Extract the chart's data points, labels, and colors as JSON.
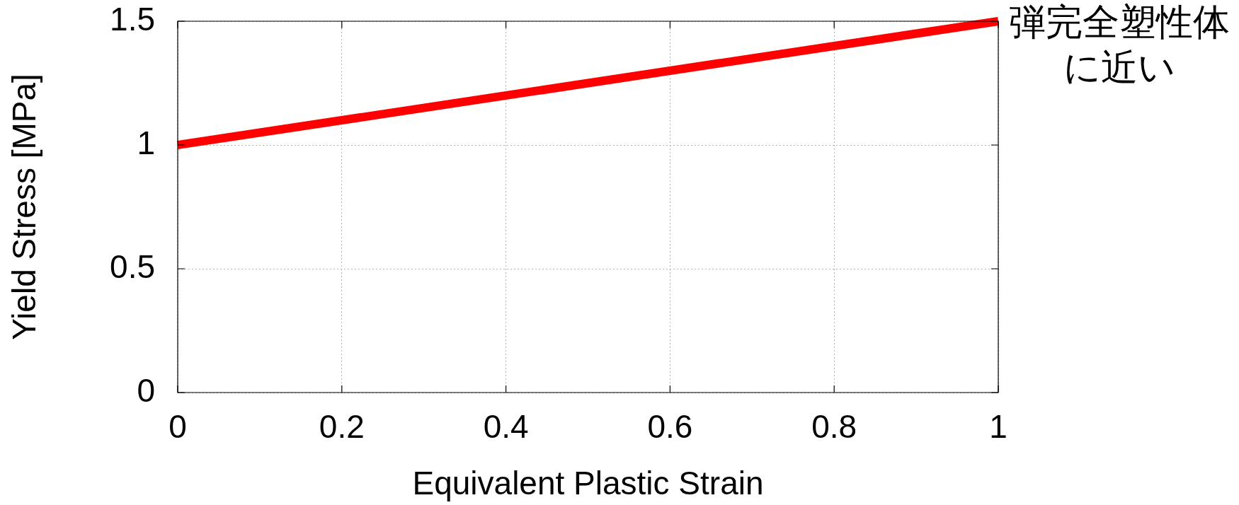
{
  "chart_data": {
    "type": "line",
    "xlabel": "Equivalent Plastic Strain",
    "ylabel": "Yield Stress [MPa]",
    "annotations": [
      {
        "text": "弾完全塑性体に近い",
        "x": 1,
        "y": 1.5
      }
    ],
    "x": [
      0,
      1
    ],
    "series": [
      {
        "color": "#ff0000",
        "values": [
          1,
          1.5
        ]
      }
    ],
    "xlim": [
      0,
      1
    ],
    "xticks": [
      0,
      0.2,
      0.4,
      0.6,
      0.8,
      1
    ],
    "ylim": [
      0,
      1.5
    ],
    "yticks": [
      0,
      0.5,
      1,
      1.5
    ],
    "grid": true,
    "marker": "none",
    "line_style": "solid"
  }
}
